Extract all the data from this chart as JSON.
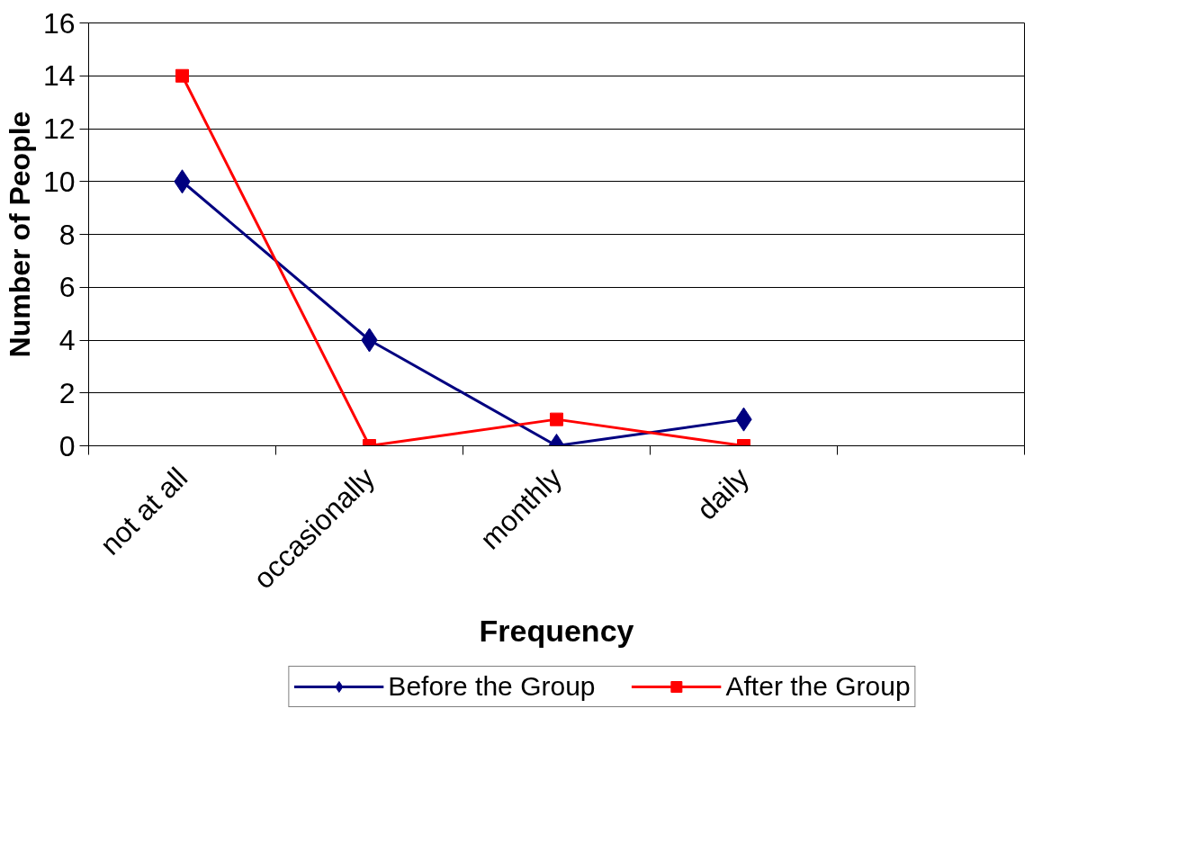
{
  "chart_data": {
    "type": "line",
    "xlabel": "Frequency",
    "ylabel": "Number of People",
    "categories": [
      "not at all",
      "occasionally",
      "monthly",
      "daily",
      null
    ],
    "series": [
      {
        "name": "Before the Group",
        "color": "#000080",
        "values": [
          10,
          4,
          0,
          1,
          null
        ],
        "marker": "diamond"
      },
      {
        "name": "After the Group",
        "color": "#ff0000",
        "values": [
          14,
          0,
          1,
          0,
          null
        ],
        "marker": "square"
      }
    ],
    "ylim": [
      0,
      16
    ],
    "yticks": [
      0,
      2,
      4,
      6,
      8,
      10,
      12,
      14,
      16
    ],
    "grid": "y",
    "legend": "bottom",
    "line_style": "solid"
  }
}
